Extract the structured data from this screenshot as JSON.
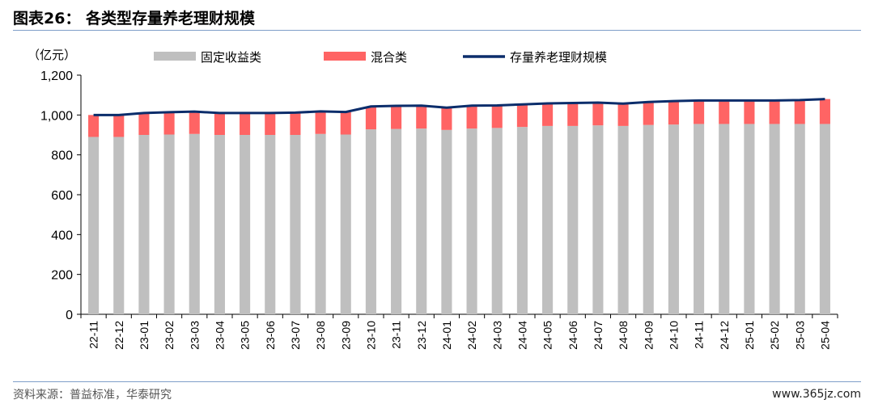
{
  "header": {
    "title": "图表26：  各类型存量养老理财规模"
  },
  "footer": {
    "source": "资料来源：普益标准，华泰研究",
    "watermark": "www.365jz.com"
  },
  "chart_data": {
    "type": "bar",
    "stacked": true,
    "unit_label": "（亿元）",
    "ylim": [
      0,
      1200
    ],
    "yticks": [
      "0",
      "200",
      "400",
      "600",
      "800",
      "1,000",
      "1,200"
    ],
    "ytick_values": [
      0,
      200,
      400,
      600,
      800,
      1000,
      1200
    ],
    "categories": [
      "22-11",
      "22-12",
      "23-01",
      "23-02",
      "23-03",
      "23-04",
      "23-05",
      "23-06",
      "23-07",
      "23-08",
      "23-09",
      "23-10",
      "23-11",
      "23-12",
      "24-01",
      "24-02",
      "24-03",
      "24-04",
      "24-05",
      "24-06",
      "24-07",
      "24-08",
      "24-09",
      "24-10",
      "24-11",
      "24-12",
      "25-01",
      "25-02",
      "25-03",
      "25-04"
    ],
    "series": [
      {
        "name": "固定收益类",
        "kind": "bar",
        "color": "#bfbfbf",
        "values": [
          890,
          890,
          900,
          902,
          905,
          900,
          900,
          900,
          900,
          905,
          902,
          928,
          930,
          932,
          925,
          932,
          935,
          940,
          945,
          945,
          948,
          945,
          950,
          952,
          955,
          955,
          955,
          955,
          955,
          955
        ]
      },
      {
        "name": "混合类",
        "kind": "bar",
        "color": "#ff6464",
        "values": [
          110,
          110,
          110,
          112,
          112,
          110,
          110,
          110,
          112,
          113,
          113,
          115,
          116,
          115,
          112,
          115,
          113,
          113,
          113,
          115,
          114,
          112,
          115,
          118,
          118,
          118,
          118,
          118,
          120,
          125
        ]
      },
      {
        "name": "存量养老理财规模",
        "kind": "line",
        "color": "#0b2d6b",
        "values": [
          1000,
          1000,
          1010,
          1014,
          1017,
          1010,
          1010,
          1010,
          1012,
          1018,
          1015,
          1043,
          1046,
          1047,
          1037,
          1047,
          1048,
          1053,
          1058,
          1060,
          1062,
          1057,
          1065,
          1070,
          1073,
          1073,
          1073,
          1073,
          1075,
          1080
        ]
      }
    ],
    "legend_position": "top"
  }
}
